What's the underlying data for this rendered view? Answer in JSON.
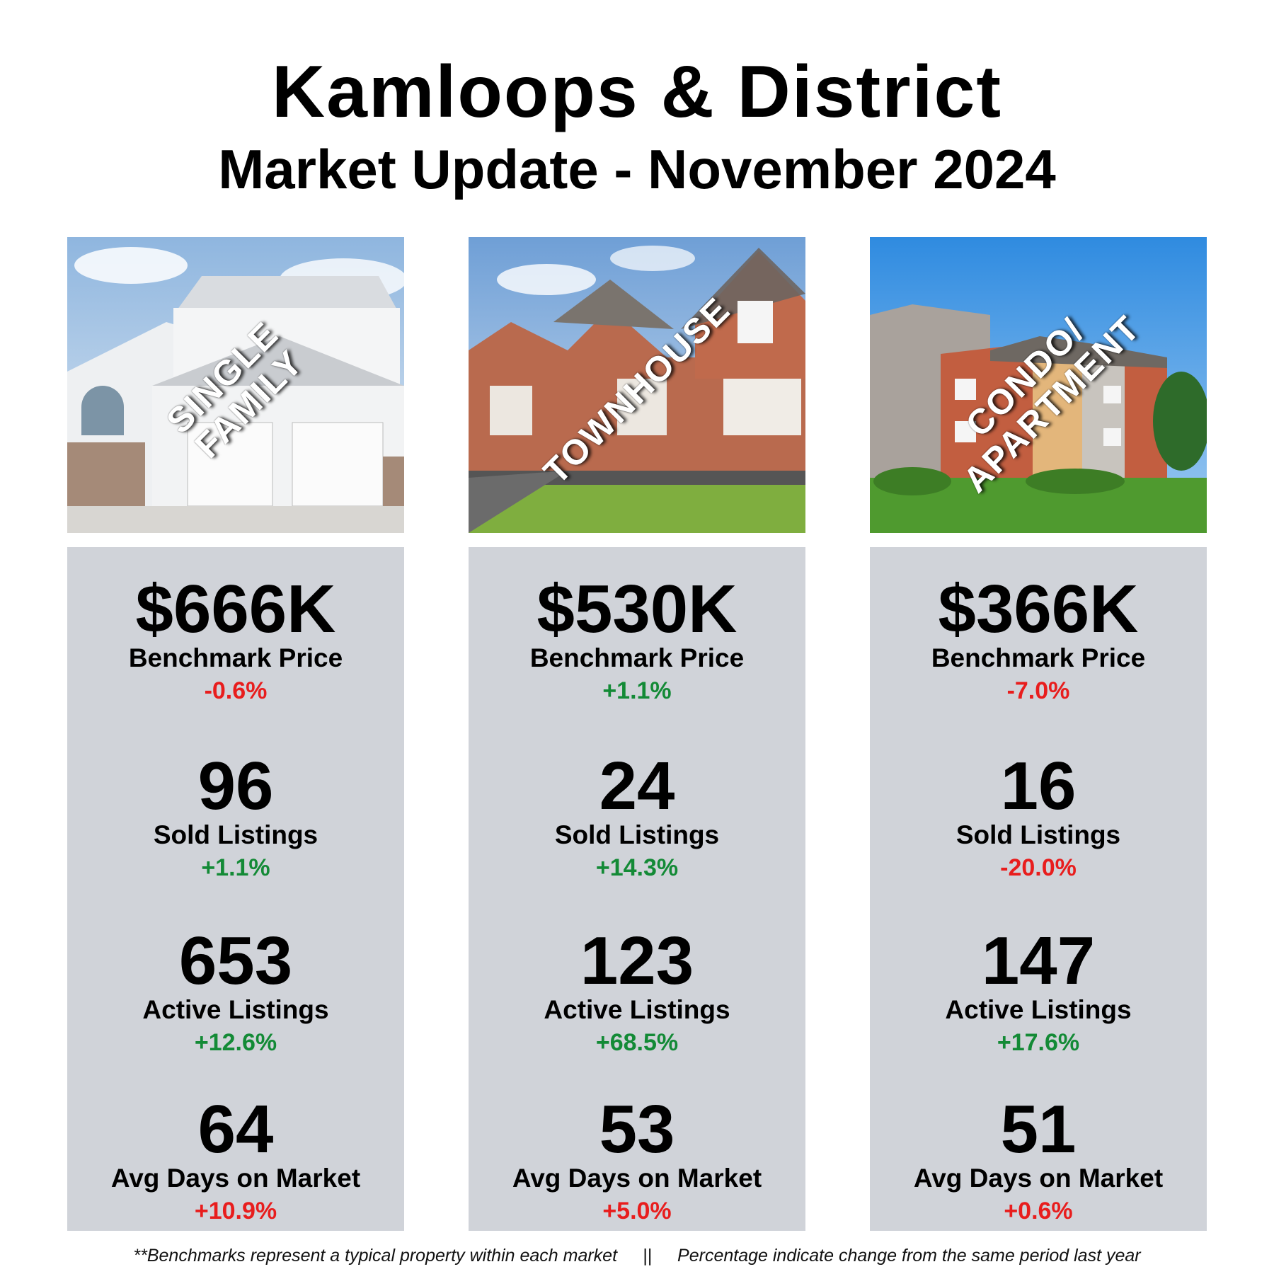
{
  "header": {
    "title": "Kamloops & District",
    "subtitle": "Market Update - November 2024"
  },
  "columns": [
    {
      "photo_label": "SINGLE FAMILY",
      "stats": [
        {
          "value": "$666K",
          "label": "Benchmark Price",
          "change": "-0.6%",
          "direction": "negative"
        },
        {
          "value": "96",
          "label": "Sold Listings",
          "change": "+1.1%",
          "direction": "positive"
        },
        {
          "value": "653",
          "label": "Active Listings",
          "change": "+12.6%",
          "direction": "positive"
        },
        {
          "value": "64",
          "label": "Avg Days on Market",
          "change": "+10.9%",
          "direction": "negative"
        }
      ]
    },
    {
      "photo_label": "TOWNHOUSE",
      "stats": [
        {
          "value": "$530K",
          "label": "Benchmark Price",
          "change": "+1.1%",
          "direction": "positive"
        },
        {
          "value": "24",
          "label": "Sold Listings",
          "change": "+14.3%",
          "direction": "positive"
        },
        {
          "value": "123",
          "label": "Active Listings",
          "change": "+68.5%",
          "direction": "positive"
        },
        {
          "value": "53",
          "label": "Avg Days on Market",
          "change": "+5.0%",
          "direction": "negative"
        }
      ]
    },
    {
      "photo_label": "CONDO/\nAPARTMENT",
      "stats": [
        {
          "value": "$366K",
          "label": "Benchmark Price",
          "change": "-7.0%",
          "direction": "negative"
        },
        {
          "value": "16",
          "label": "Sold Listings",
          "change": "-20.0%",
          "direction": "negative"
        },
        {
          "value": "147",
          "label": "Active Listings",
          "change": "+17.6%",
          "direction": "positive"
        },
        {
          "value": "51",
          "label": "Avg Days on Market",
          "change": "+0.6%",
          "direction": "negative"
        }
      ]
    }
  ],
  "footer": {
    "left": "**Benchmarks represent a typical property within each market",
    "separator": "||",
    "right": "Percentage indicate change from the same period last year"
  },
  "colors": {
    "positive": "#138a36",
    "negative": "#e81d1d",
    "panel": "#d0d3d9"
  }
}
